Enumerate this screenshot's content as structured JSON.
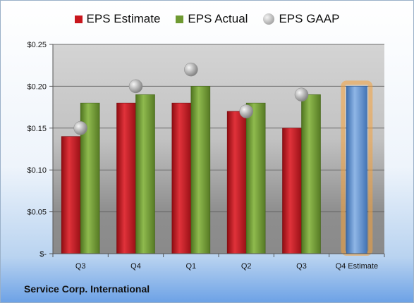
{
  "chart_data": {
    "type": "bar",
    "title": "",
    "xlabel": "",
    "ylabel": "",
    "categories": [
      "Q3",
      "Q4",
      "Q1",
      "Q2",
      "Q3",
      "Q4 Estimate"
    ],
    "series": [
      {
        "name": "EPS Estimate",
        "color": "#c8161d",
        "values": [
          0.14,
          0.18,
          0.18,
          0.17,
          0.15,
          null
        ]
      },
      {
        "name": "EPS Actual",
        "color": "#6f9a32",
        "values": [
          0.18,
          0.19,
          0.2,
          0.18,
          0.19,
          null
        ]
      },
      {
        "name": "EPS GAAP",
        "color": "#a6a6a6",
        "values": [
          0.15,
          0.2,
          0.22,
          0.17,
          0.19,
          null
        ]
      }
    ],
    "projection": {
      "category": "Q4 Estimate",
      "value": 0.2,
      "color": "#5b8fd0",
      "glow": "#f5a23c"
    },
    "ylim": [
      0,
      0.25
    ],
    "yticks": [
      0,
      0.05,
      0.1,
      0.15,
      0.2,
      0.25
    ],
    "ytick_labels": [
      "$-",
      "$0.05",
      "$0.10",
      "$0.15",
      "$0.20",
      "$0.25"
    ],
    "grid": true,
    "legend_position": "top"
  },
  "legend": {
    "estimate": "EPS Estimate",
    "actual": "EPS Actual",
    "gaap": "EPS GAAP"
  },
  "footer": {
    "company": "Service Corp. International"
  }
}
